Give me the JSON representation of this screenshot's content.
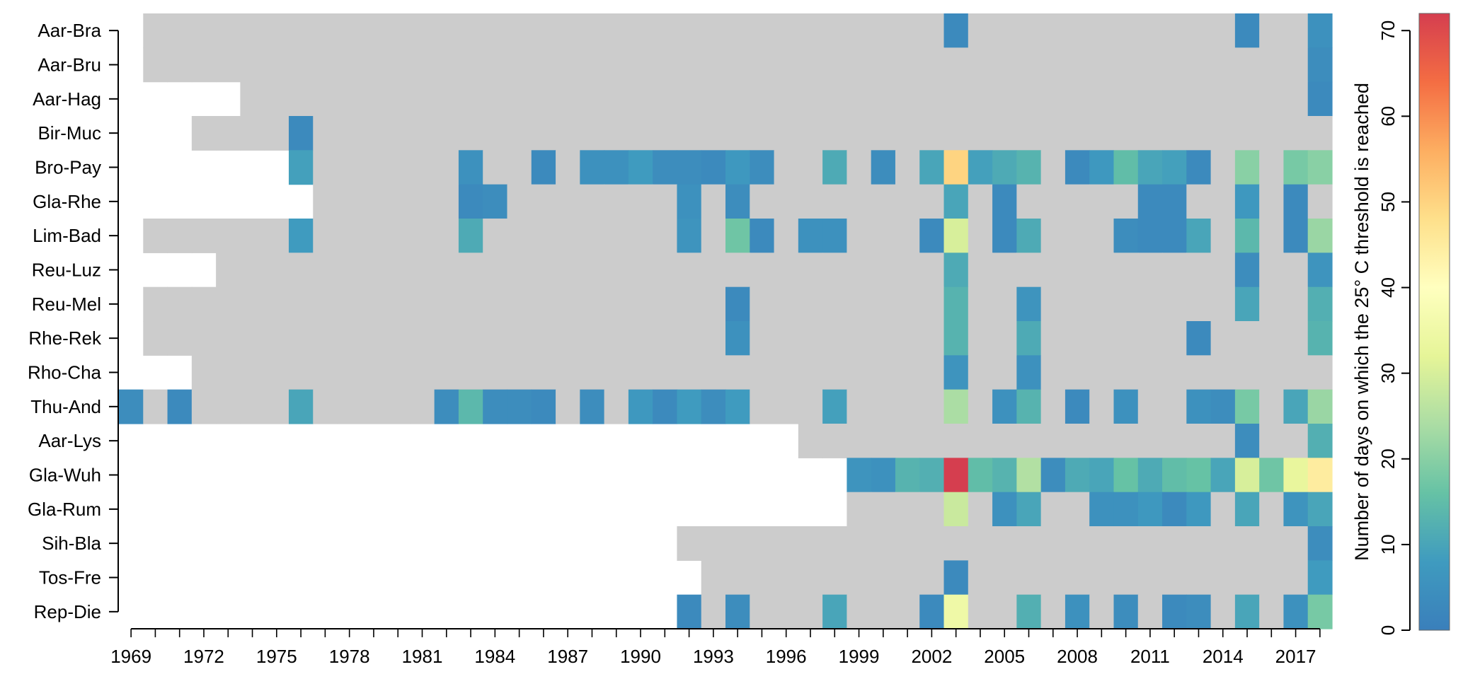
{
  "chart_data": {
    "type": "heatmap",
    "stations": [
      "Aar-Bra",
      "Aar-Bru",
      "Aar-Hag",
      "Bir-Muc",
      "Bro-Pay",
      "Gla-Rhe",
      "Lim-Bad",
      "Reu-Luz",
      "Reu-Mel",
      "Rhe-Rek",
      "Rho-Cha",
      "Thu-And",
      "Aar-Lys",
      "Gla-Wuh",
      "Gla-Rum",
      "Sih-Bla",
      "Tos-Fre",
      "Rep-Die"
    ],
    "years": [
      1969,
      1970,
      1971,
      1972,
      1973,
      1974,
      1975,
      1976,
      1977,
      1978,
      1979,
      1980,
      1981,
      1982,
      1983,
      1984,
      1985,
      1986,
      1987,
      1988,
      1989,
      1990,
      1991,
      1992,
      1993,
      1994,
      1995,
      1996,
      1997,
      1998,
      1999,
      2000,
      2001,
      2002,
      2003,
      2004,
      2005,
      2006,
      2007,
      2008,
      2009,
      2010,
      2011,
      2012,
      2013,
      2014,
      2015,
      2016,
      2017,
      2018
    ],
    "x_tick_labels": [
      "1969",
      "1972",
      "1975",
      "1978",
      "1981",
      "1984",
      "1987",
      "1990",
      "1993",
      "1996",
      "1999",
      "2002",
      "2005",
      "2008",
      "2011",
      "2014",
      "2017"
    ],
    "colorbar": {
      "title": "Number of days on which the 25° C threshold is reached",
      "range": [
        0,
        72
      ],
      "ticks": [
        "0",
        "10",
        "20",
        "30",
        "40",
        "50",
        "60",
        "70"
      ],
      "stops": [
        "#3a7fbb",
        "#3f9bbf",
        "#66c2a5",
        "#abdda4",
        "#e6f598",
        "#ffffbf",
        "#fee08b",
        "#fdae61",
        "#f46d43",
        "#d53e4f"
      ],
      "zero_color": "#cccccc"
    },
    "data_start_year": [
      1970,
      1970,
      1974,
      1972,
      1976,
      1977,
      1970,
      1973,
      1970,
      1970,
      1972,
      1969,
      1997,
      1999,
      1999,
      1992,
      1993,
      1992
    ],
    "values": {
      "0": {
        "2003": 3,
        "2015": 3,
        "2018": 5
      },
      "1": {
        "2018": 4
      },
      "2": {
        "2018": 3
      },
      "3": {
        "1976": 3
      },
      "4": {
        "1976": 9,
        "1983": 5,
        "1986": 3,
        "1988": 5,
        "1989": 5,
        "1990": 8,
        "1991": 4,
        "1992": 4,
        "1993": 3,
        "1994": 7,
        "1995": 4,
        "1998": 11,
        "2000": 4,
        "2002": 10,
        "2003": 50,
        "2004": 9,
        "2005": 11,
        "2006": 13,
        "2008": 3,
        "2009": 7,
        "2010": 15,
        "2011": 10,
        "2012": 9,
        "2013": 3,
        "2015": 20,
        "2017": 18,
        "2018": 20
      },
      "5": {
        "1983": 3,
        "1984": 4,
        "1992": 5,
        "1994": 4,
        "2003": 10,
        "2005": 3,
        "2011": 3,
        "2012": 3,
        "2015": 7,
        "2017": 3
      },
      "6": {
        "1976": 8,
        "1983": 11,
        "1992": 6,
        "1994": 17,
        "1995": 3,
        "1997": 5,
        "1998": 5,
        "2002": 3,
        "2003": 30,
        "2005": 3,
        "2006": 11,
        "2010": 4,
        "2011": 3,
        "2012": 3,
        "2013": 10,
        "2015": 14,
        "2017": 3,
        "2018": 22
      },
      "7": {
        "2003": 11,
        "2015": 4,
        "2018": 6
      },
      "8": {
        "1994": 3,
        "2003": 13,
        "2006": 6,
        "2015": 10,
        "2018": 12
      },
      "9": {
        "1994": 5,
        "2003": 13,
        "2006": 11,
        "2013": 3,
        "2018": 13
      },
      "10": {
        "2003": 6,
        "2006": 5
      },
      "11": {
        "1969": 4,
        "1971": 3,
        "1976": 10,
        "1982": 4,
        "1983": 14,
        "1984": 4,
        "1985": 4,
        "1986": 3,
        "1988": 4,
        "1990": 7,
        "1991": 3,
        "1992": 8,
        "1993": 4,
        "1994": 8,
        "1998": 9,
        "2003": 24,
        "2005": 5,
        "2006": 13,
        "2008": 3,
        "2010": 5,
        "2013": 5,
        "2014": 4,
        "2015": 18,
        "2017": 10,
        "2018": 22
      },
      "12": {
        "2015": 4,
        "2018": 12
      },
      "13": {
        "1999": 6,
        "2000": 5,
        "2001": 13,
        "2002": 12,
        "2003": 72,
        "2004": 15,
        "2005": 13,
        "2006": 25,
        "2007": 4,
        "2008": 11,
        "2009": 10,
        "2010": 16,
        "2011": 11,
        "2012": 15,
        "2013": 16,
        "2014": 10,
        "2015": 30,
        "2016": 17,
        "2017": 33,
        "2018": 45
      },
      "14": {
        "2003": 28,
        "2005": 5,
        "2006": 10,
        "2009": 5,
        "2010": 5,
        "2011": 7,
        "2012": 3,
        "2013": 7,
        "2015": 10,
        "2017": 6,
        "2018": 10
      },
      "15": {
        "2018": 4
      },
      "16": {
        "2003": 3,
        "2018": 8
      },
      "17": {
        "1992": 3,
        "1994": 4,
        "1998": 10,
        "2002": 3,
        "2003": 35,
        "2006": 12,
        "2008": 5,
        "2010": 4,
        "2012": 3,
        "2013": 4,
        "2015": 10,
        "2017": 5,
        "2018": 18
      }
    }
  }
}
